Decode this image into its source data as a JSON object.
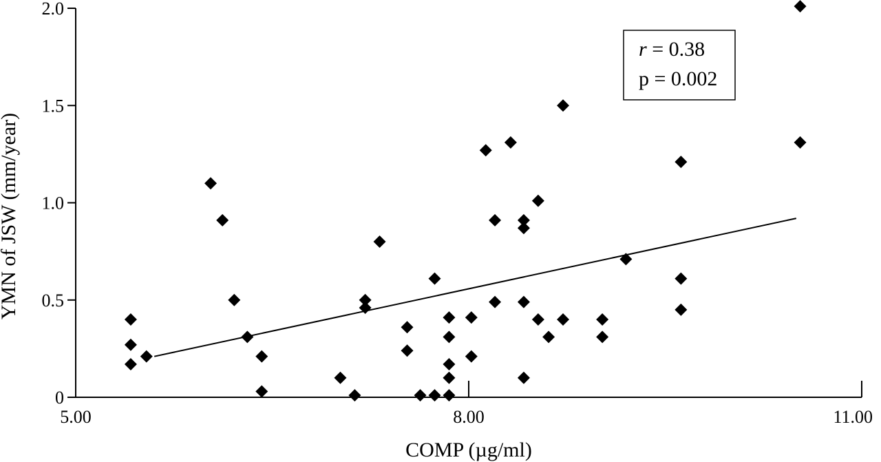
{
  "chart_data": {
    "type": "scatter",
    "title": "",
    "xlabel": "COMP (µg/ml)",
    "ylabel": "YMN of JSW (mm/year)",
    "xlim": [
      5.0,
      11.0
    ],
    "ylim": [
      0,
      2.0
    ],
    "x_ticks": [
      5.0,
      8.0,
      11.0
    ],
    "x_tick_labels": [
      "5.00",
      "8.00",
      "11.00"
    ],
    "y_ticks": [
      0,
      0.5,
      1.0,
      1.5,
      2.0
    ],
    "y_tick_labels": [
      "0",
      "0.5",
      "1.0",
      "1.5",
      "2.0"
    ],
    "grid": false,
    "marker": "diamond",
    "marker_color": "#000000",
    "annotation": {
      "r_symbol": "r",
      "r_text": " = 0.38",
      "p_text": "p = 0.002"
    },
    "trendline": {
      "x": [
        5.6,
        10.5
      ],
      "y": [
        0.21,
        0.92
      ]
    },
    "points": [
      {
        "x": 5.42,
        "y": 0.4
      },
      {
        "x": 5.42,
        "y": 0.27
      },
      {
        "x": 5.42,
        "y": 0.17
      },
      {
        "x": 5.54,
        "y": 0.21
      },
      {
        "x": 6.03,
        "y": 1.1
      },
      {
        "x": 6.12,
        "y": 0.91
      },
      {
        "x": 6.21,
        "y": 0.5
      },
      {
        "x": 6.31,
        "y": 0.31
      },
      {
        "x": 6.42,
        "y": 0.21
      },
      {
        "x": 6.42,
        "y": 0.03
      },
      {
        "x": 7.02,
        "y": 0.1
      },
      {
        "x": 7.13,
        "y": 0.01
      },
      {
        "x": 7.21,
        "y": 0.5
      },
      {
        "x": 7.21,
        "y": 0.46
      },
      {
        "x": 7.32,
        "y": 0.8
      },
      {
        "x": 7.53,
        "y": 0.36
      },
      {
        "x": 7.53,
        "y": 0.24
      },
      {
        "x": 7.63,
        "y": 0.01
      },
      {
        "x": 7.74,
        "y": 0.61
      },
      {
        "x": 7.74,
        "y": 0.01
      },
      {
        "x": 7.85,
        "y": 0.41
      },
      {
        "x": 7.85,
        "y": 0.31
      },
      {
        "x": 7.85,
        "y": 0.17
      },
      {
        "x": 7.85,
        "y": 0.1
      },
      {
        "x": 7.85,
        "y": 0.01
      },
      {
        "x": 8.02,
        "y": 0.41
      },
      {
        "x": 8.02,
        "y": 0.21
      },
      {
        "x": 8.13,
        "y": 1.27
      },
      {
        "x": 8.2,
        "y": 0.91
      },
      {
        "x": 8.2,
        "y": 0.49
      },
      {
        "x": 8.32,
        "y": 1.31
      },
      {
        "x": 8.42,
        "y": 0.91
      },
      {
        "x": 8.42,
        "y": 0.87
      },
      {
        "x": 8.42,
        "y": 0.49
      },
      {
        "x": 8.42,
        "y": 0.1
      },
      {
        "x": 8.53,
        "y": 1.01
      },
      {
        "x": 8.53,
        "y": 0.4
      },
      {
        "x": 8.61,
        "y": 0.31
      },
      {
        "x": 8.72,
        "y": 1.5
      },
      {
        "x": 8.72,
        "y": 0.4
      },
      {
        "x": 9.02,
        "y": 0.4
      },
      {
        "x": 9.02,
        "y": 0.31
      },
      {
        "x": 9.2,
        "y": 0.71
      },
      {
        "x": 9.62,
        "y": 1.21
      },
      {
        "x": 9.62,
        "y": 0.61
      },
      {
        "x": 9.62,
        "y": 0.45
      },
      {
        "x": 10.53,
        "y": 2.01
      },
      {
        "x": 10.53,
        "y": 1.31
      }
    ]
  }
}
